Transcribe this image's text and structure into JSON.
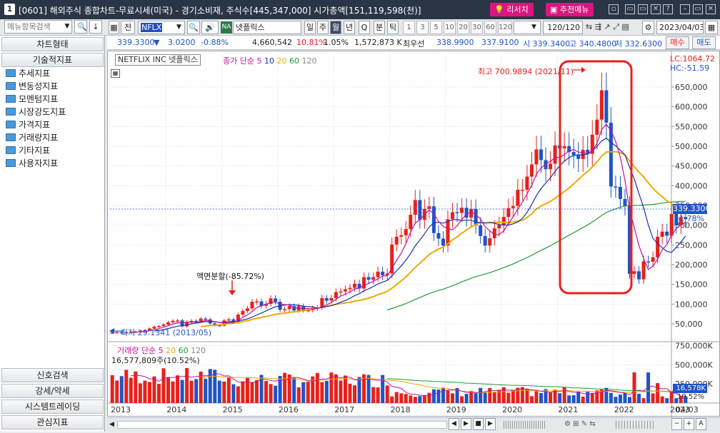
{
  "titlebar": {
    "badge": "1",
    "title": "[0601] 해외주식 종합차트-무료시세(미국) - 경기소비재, 주식수[445,347,000] 시가총액[151,119,598(천)]",
    "research": "리서치",
    "menu": "추천메뉴",
    "win": [
      "▫",
      "▭",
      "▭",
      "✕",
      "?",
      "–",
      "▭",
      "✕"
    ]
  },
  "toolbar": {
    "search_placeholder": "메뉴항목검색",
    "jeon": "전",
    "code": "NFLX",
    "dir": "N",
    "market": "NA",
    "name": "넷플릭스",
    "periods": [
      "일",
      "주",
      "월",
      "년",
      "Q",
      "분",
      "틱"
    ],
    "selected_period": "월",
    "nums": [
      "1",
      "3",
      "5",
      "10",
      "20",
      "30",
      "60",
      "120"
    ],
    "count": "120/120",
    "date": "2023/04/03"
  },
  "quote": {
    "price": "339.3300",
    "arrow": "▼",
    "change": "3.0200",
    "rate": "-0.88%",
    "volume": "4,660,542",
    "turnover": "10.81%",
    "r2": "1.05%",
    "amount": "1,572,873 K",
    "ex_label": "최우선",
    "ask": "338.9900",
    "bid": "337.9100",
    "open": "시 339.3400",
    "high": "고 340.4800",
    "low": "저 332.6300",
    "buy": "매수",
    "sell": "매도"
  },
  "sidebar": {
    "top1": "차트형태",
    "top2": "기술적지표",
    "items": [
      "추세지표",
      "변동성지표",
      "모멘텀지표",
      "시장강도지표",
      "가격지표",
      "거래량지표",
      "기타지표",
      "사용자지표"
    ],
    "bottom": [
      "신호검색",
      "강세/약세",
      "시스템트레이딩",
      "관심지표"
    ]
  },
  "chart": {
    "name_box": "NETFLIX INC 넷플릭스",
    "ma_label": "종가 단순 5",
    "ma_nums": [
      "10",
      "20",
      "60",
      "120"
    ],
    "lc": "LC:1064.72",
    "hc": "HC:-51.59",
    "high_ann": "최고 700.9894 (2021/11)",
    "low_ann": "최저 29.1341 (2013/05)",
    "split_ann": "액면분할(-85.72%)",
    "price_tag": "339.3300",
    "pct_tag": "-1.78%",
    "yticks": [
      "650,000",
      "600,000",
      "550,000",
      "500,000",
      "450,000",
      "400,000",
      "350,000",
      "300,000",
      "250,000",
      "200,000",
      "150,000",
      "100,000",
      "50,000"
    ],
    "vol_label": "거래량 단순 5",
    "vol_nums": [
      "20",
      "60",
      "120"
    ],
    "vol_value": "16,577,809주(10.52%)",
    "vol_yticks": [
      "750,000K",
      "500,000K",
      "250,000K"
    ],
    "vol_tag": "16,578K",
    "vol_pct": "10.52%",
    "xticks": [
      "2013",
      "2014",
      "2015",
      "2016",
      "2017",
      "2018",
      "2019",
      "2020",
      "2021",
      "2022",
      "2023",
      "04/03"
    ],
    "colors": {
      "up": "#e8201a",
      "down": "#1f54c8",
      "ma5": "#c2129a",
      "ma10": "#1a2fb0",
      "ma20": "#f0a800",
      "ma60": "#1f9a35"
    }
  },
  "bottom": {
    "buttons": [
      "◀",
      "▶",
      "■",
      "▶",
      "−",
      "+",
      "A"
    ]
  }
}
